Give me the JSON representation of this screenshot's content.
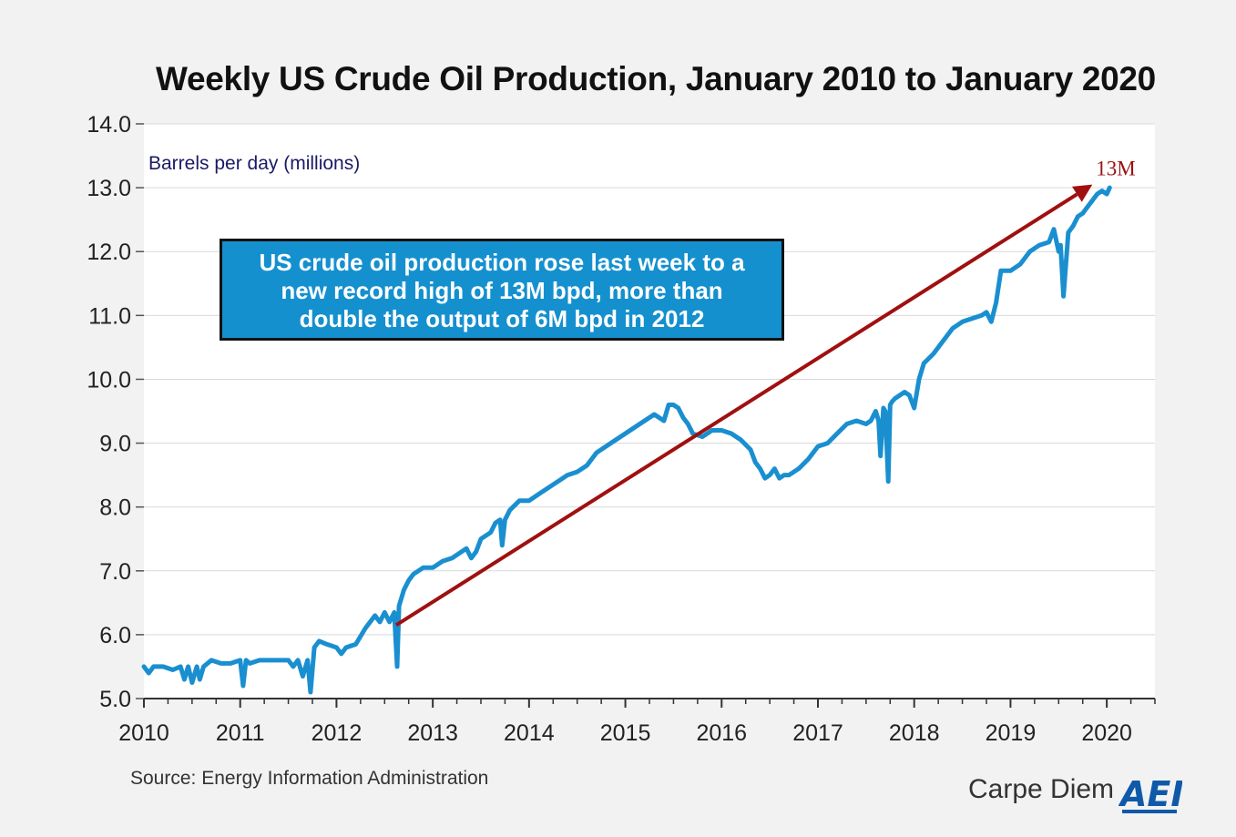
{
  "chart_data": {
    "type": "line",
    "title": "Weekly US Crude Oil Production, January 2010 to January 2020",
    "ylabel": "Barrels per day (millions)",
    "xlabel": "",
    "ylim": [
      5.0,
      14.0
    ],
    "xlim": [
      2010.0,
      2020.5
    ],
    "yticks": [
      "5.0",
      "6.0",
      "7.0",
      "8.0",
      "9.0",
      "10.0",
      "11.0",
      "12.0",
      "13.0",
      "14.0"
    ],
    "xticks": [
      "2010",
      "2011",
      "2012",
      "2013",
      "2014",
      "2015",
      "2016",
      "2017",
      "2018",
      "2019",
      "2020"
    ],
    "series": [
      {
        "name": "US crude oil production",
        "color": "#1a8fd0",
        "x": [
          2010.0,
          2010.05,
          2010.1,
          2010.2,
          2010.3,
          2010.38,
          2010.42,
          2010.46,
          2010.5,
          2010.55,
          2010.58,
          2010.62,
          2010.7,
          2010.8,
          2010.9,
          2011.0,
          2011.03,
          2011.06,
          2011.1,
          2011.2,
          2011.3,
          2011.4,
          2011.5,
          2011.55,
          2011.6,
          2011.65,
          2011.7,
          2011.73,
          2011.77,
          2011.82,
          2011.9,
          2012.0,
          2012.05,
          2012.1,
          2012.2,
          2012.3,
          2012.35,
          2012.4,
          2012.45,
          2012.5,
          2012.55,
          2012.6,
          2012.63,
          2012.65,
          2012.68,
          2012.7,
          2012.75,
          2012.8,
          2012.9,
          2013.0,
          2013.1,
          2013.2,
          2013.3,
          2013.35,
          2013.4,
          2013.45,
          2013.5,
          2013.6,
          2013.65,
          2013.7,
          2013.72,
          2013.75,
          2013.8,
          2013.9,
          2014.0,
          2014.1,
          2014.2,
          2014.3,
          2014.4,
          2014.5,
          2014.6,
          2014.7,
          2014.8,
          2014.9,
          2015.0,
          2015.1,
          2015.2,
          2015.3,
          2015.35,
          2015.4,
          2015.45,
          2015.5,
          2015.55,
          2015.6,
          2015.65,
          2015.7,
          2015.8,
          2015.9,
          2016.0,
          2016.1,
          2016.2,
          2016.3,
          2016.35,
          2016.4,
          2016.45,
          2016.5,
          2016.55,
          2016.6,
          2016.65,
          2016.7,
          2016.8,
          2016.9,
          2017.0,
          2017.1,
          2017.2,
          2017.3,
          2017.4,
          2017.5,
          2017.55,
          2017.6,
          2017.63,
          2017.65,
          2017.68,
          2017.7,
          2017.73,
          2017.75,
          2017.77,
          2017.8,
          2017.85,
          2017.9,
          2017.95,
          2018.0,
          2018.05,
          2018.1,
          2018.2,
          2018.3,
          2018.4,
          2018.5,
          2018.6,
          2018.7,
          2018.75,
          2018.8,
          2018.85,
          2018.9,
          2019.0,
          2019.1,
          2019.15,
          2019.2,
          2019.3,
          2019.4,
          2019.45,
          2019.5,
          2019.52,
          2019.55,
          2019.6,
          2019.65,
          2019.7,
          2019.75,
          2019.8,
          2019.85,
          2019.9,
          2019.95,
          2020.0,
          2020.03
        ],
        "values": [
          5.5,
          5.4,
          5.5,
          5.5,
          5.45,
          5.5,
          5.3,
          5.5,
          5.25,
          5.5,
          5.3,
          5.5,
          5.6,
          5.55,
          5.55,
          5.6,
          5.2,
          5.6,
          5.55,
          5.6,
          5.6,
          5.6,
          5.6,
          5.5,
          5.6,
          5.35,
          5.6,
          5.1,
          5.8,
          5.9,
          5.85,
          5.8,
          5.7,
          5.8,
          5.85,
          6.1,
          6.2,
          6.3,
          6.2,
          6.35,
          6.2,
          6.35,
          5.5,
          6.45,
          6.6,
          6.7,
          6.85,
          6.95,
          7.05,
          7.05,
          7.15,
          7.2,
          7.3,
          7.35,
          7.2,
          7.3,
          7.5,
          7.6,
          7.75,
          7.8,
          7.4,
          7.8,
          7.95,
          8.1,
          8.1,
          8.2,
          8.3,
          8.4,
          8.5,
          8.55,
          8.65,
          8.85,
          8.95,
          9.05,
          9.15,
          9.25,
          9.35,
          9.45,
          9.4,
          9.35,
          9.6,
          9.6,
          9.55,
          9.4,
          9.3,
          9.15,
          9.1,
          9.2,
          9.2,
          9.15,
          9.05,
          8.9,
          8.7,
          8.6,
          8.45,
          8.5,
          8.6,
          8.45,
          8.5,
          8.5,
          8.6,
          8.75,
          8.95,
          9.0,
          9.15,
          9.3,
          9.35,
          9.3,
          9.35,
          9.5,
          9.35,
          8.8,
          9.55,
          9.5,
          8.4,
          9.6,
          9.65,
          9.7,
          9.75,
          9.8,
          9.75,
          9.55,
          10.0,
          10.25,
          10.4,
          10.6,
          10.8,
          10.9,
          10.95,
          11.0,
          11.05,
          10.9,
          11.2,
          11.7,
          11.7,
          11.8,
          11.9,
          12.0,
          12.1,
          12.15,
          12.35,
          12.0,
          12.1,
          11.3,
          12.3,
          12.4,
          12.55,
          12.6,
          12.7,
          12.8,
          12.9,
          12.95,
          12.9,
          13.0
        ]
      }
    ],
    "annotations": {
      "trend_start": {
        "x": 2012.62,
        "y": 6.15
      },
      "trend_end": {
        "x": 2019.85,
        "y": 13.05
      },
      "trend_color": "#a01010",
      "trend_label": "13M",
      "callout_text": [
        "US crude oil production rose last week to a",
        "new record high of 13M bpd, more than",
        "double the output of 6M bpd in 2012"
      ],
      "callout_color": "#1590cf"
    }
  },
  "footer": {
    "source": "Source: Energy Information Administration",
    "brand": "Carpe Diem",
    "logo_text": "AEI"
  }
}
